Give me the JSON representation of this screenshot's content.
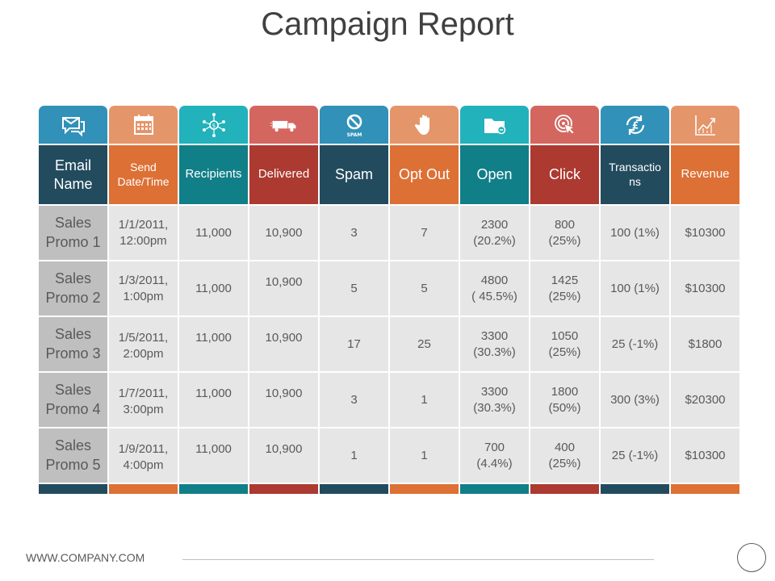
{
  "title": "Campaign Report",
  "footer": {
    "url": "WWW.COMPANY.COM"
  },
  "colors": {
    "navy": "#234b5e",
    "orange": "#dd7035",
    "teal": "#117f87",
    "red": "#ac3a31",
    "icon_blue": "#3191b8",
    "icon_peach": "#e5956a",
    "icon_cyan": "#21b2bb",
    "icon_rose": "#d46660"
  },
  "columns": [
    {
      "label": "Email Name",
      "icon": "email-icon",
      "spam_text": ""
    },
    {
      "label": "Send Date/Time",
      "icon": "calendar-icon",
      "spam_text": ""
    },
    {
      "label": "Recipients",
      "icon": "recipients-network-icon",
      "spam_text": ""
    },
    {
      "label": "Delivered",
      "icon": "delivery-truck-icon",
      "spam_text": ""
    },
    {
      "label": "Spam",
      "icon": "spam-icon",
      "spam_text": "SPAM"
    },
    {
      "label": "Opt Out",
      "icon": "hand-stop-icon",
      "spam_text": ""
    },
    {
      "label": "Open",
      "icon": "open-folder-icon",
      "spam_text": ""
    },
    {
      "label": "Click",
      "icon": "click-target-icon",
      "spam_text": ""
    },
    {
      "label": "Transactions",
      "display": "Transactio\nns",
      "icon": "pound-exchange-icon",
      "spam_text": ""
    },
    {
      "label": "Revenue",
      "icon": "growth-chart-icon",
      "spam_text": ""
    }
  ],
  "rows": [
    [
      "Sales Promo 1",
      "1/1/2011,\n12:00pm",
      "11,000",
      "10,900",
      "3",
      "7",
      "2300\n(20.2%)",
      "800\n(25%)",
      "100 (1%)",
      "$10300"
    ],
    [
      "Sales Promo 2",
      "1/3/2011,\n1:00pm",
      "11,000",
      "10,900",
      "5",
      "5",
      "4800\n( 45.5%)",
      "1425\n(25%)",
      "100 (1%)",
      "$10300"
    ],
    [
      "Sales Promo 3",
      "1/5/2011,\n2:00pm",
      "11,000",
      "10,900",
      "17",
      "25",
      "3300\n(30.3%)",
      "1050\n(25%)",
      "25 (-1%)",
      "$1800"
    ],
    [
      "Sales Promo 4",
      "1/7/2011,\n3:00pm",
      "11,000",
      "10,900",
      "3",
      "1",
      "3300\n(30.3%)",
      "1800\n(50%)",
      "300 (3%)",
      "$20300"
    ],
    [
      "Sales Promo 5",
      "1/9/2011,\n4:00pm",
      "11,000",
      "10,900",
      "1",
      "1",
      "700\n(4.4%)",
      "400\n(25%)",
      "25 (-1%)",
      "$10300"
    ]
  ]
}
